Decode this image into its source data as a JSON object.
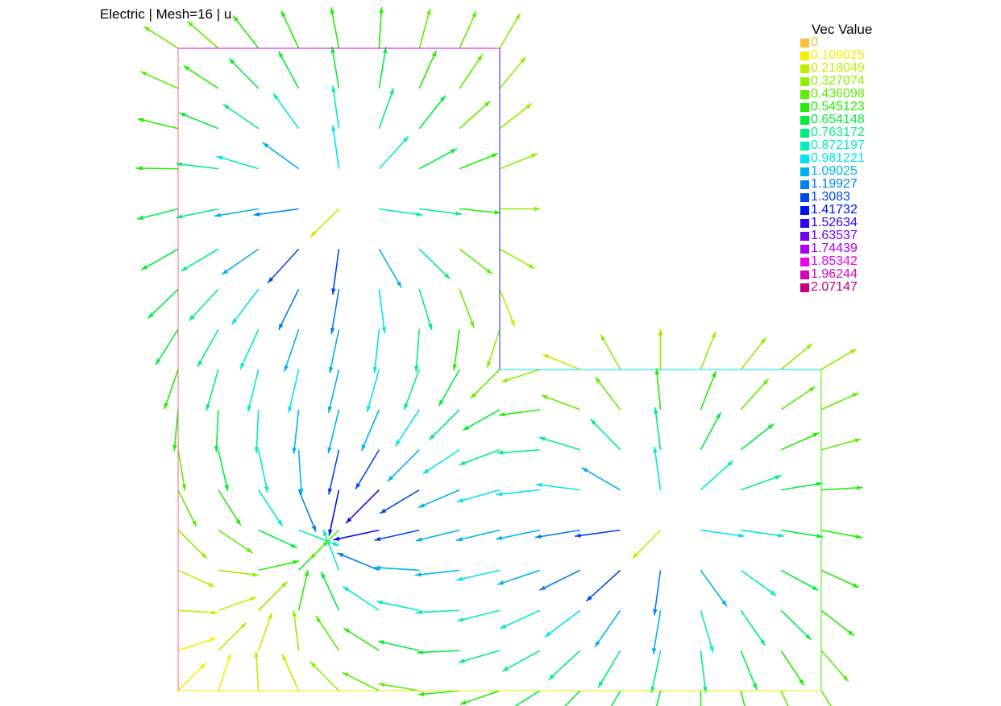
{
  "header": {
    "title": "Electric | Mesh=16 | u"
  },
  "legend": {
    "title": "Vec Value",
    "entries": [
      {
        "label": "0",
        "color": "#f2c234"
      },
      {
        "label": "0.109025",
        "color": "#f0f000"
      },
      {
        "label": "0.218049",
        "color": "#c0ee00"
      },
      {
        "label": "0.327074",
        "color": "#90ee00"
      },
      {
        "label": "0.436098",
        "color": "#5cee00"
      },
      {
        "label": "0.545123",
        "color": "#22ee00"
      },
      {
        "label": "0.654148",
        "color": "#00ee3a"
      },
      {
        "label": "0.763172",
        "color": "#00ee84"
      },
      {
        "label": "0.872197",
        "color": "#00eebe"
      },
      {
        "label": "0.981221",
        "color": "#00e4ee"
      },
      {
        "label": "1.09025",
        "color": "#00b2ee"
      },
      {
        "label": "1.19927",
        "color": "#0080ee"
      },
      {
        "label": "1.3083",
        "color": "#0048ee"
      },
      {
        "label": "1.41732",
        "color": "#0010ee"
      },
      {
        "label": "1.52634",
        "color": "#3600ee"
      },
      {
        "label": "1.63537",
        "color": "#7200ee"
      },
      {
        "label": "1.74439",
        "color": "#ac00ee"
      },
      {
        "label": "1.85342",
        "color": "#ee00ee"
      },
      {
        "label": "1.96244",
        "color": "#d800b8"
      },
      {
        "label": "2.07147",
        "color": "#c00080"
      }
    ]
  },
  "field": {
    "sources": [
      {
        "x": -0.5,
        "y": 0.5,
        "sign": 1
      },
      {
        "x": 0.5,
        "y": -0.5,
        "sign": 1
      },
      {
        "x": -0.5,
        "y": -0.5,
        "sign": -1
      }
    ],
    "domain_corners": [
      [
        -1,
        -1
      ],
      [
        1,
        -1
      ],
      [
        1,
        0
      ],
      [
        0,
        0
      ],
      [
        0,
        1
      ],
      [
        -1,
        1
      ]
    ],
    "boundary_colors": {
      "top": "#e000e0",
      "right_upper": "#2020ff",
      "step": "#00dddd",
      "right_lower": "#44ee00",
      "bottom": "#eeee00",
      "left": "#ff6080"
    }
  }
}
